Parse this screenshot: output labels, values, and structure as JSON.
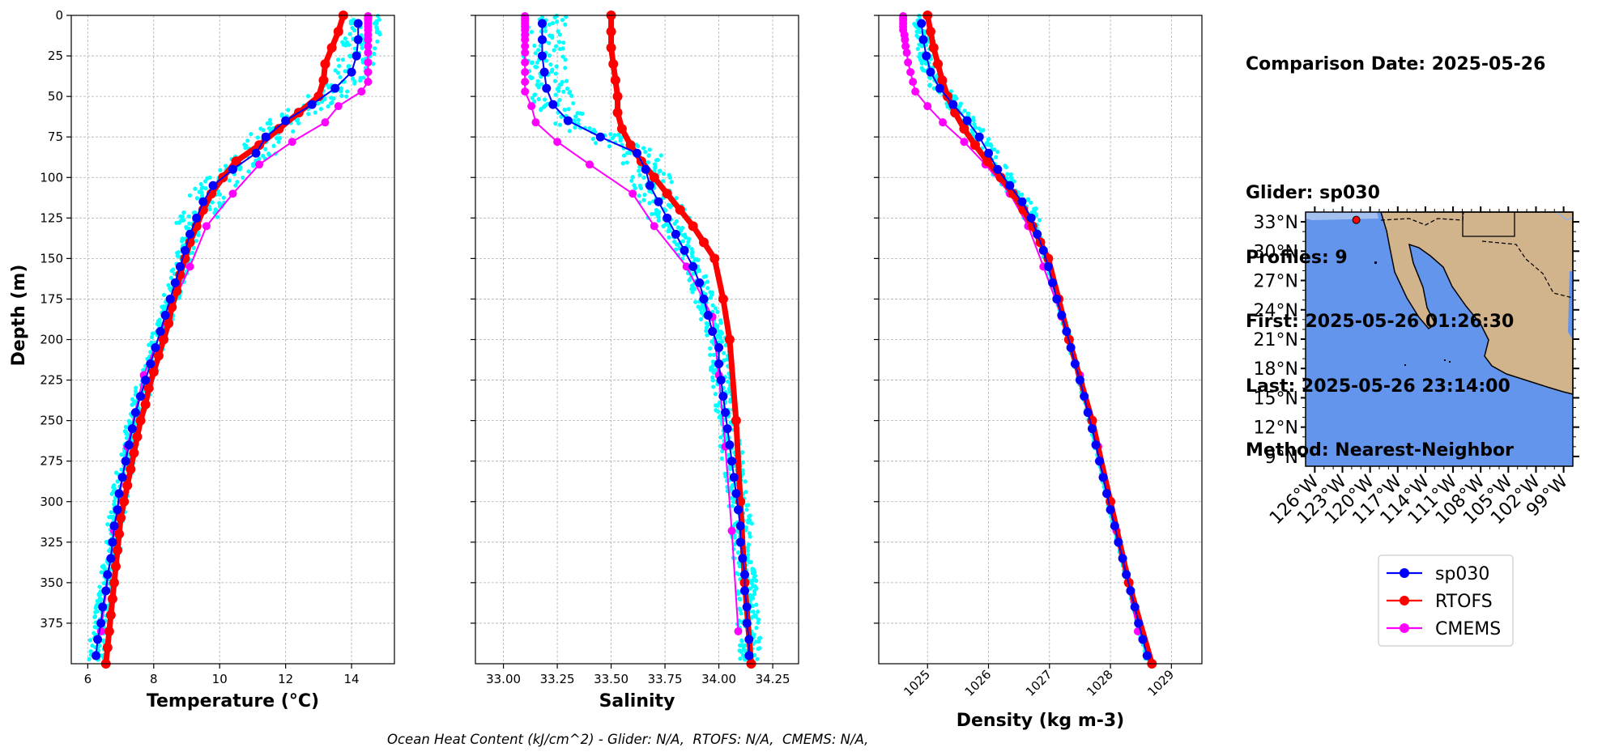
{
  "info": {
    "comparison_date": "Comparison Date: 2025-05-26",
    "glider": "Glider: sp030",
    "profiles": "Profiles: 9",
    "first": "First: 2025-05-26 01:26:30",
    "last": "Last: 2025-05-26 23:14:00",
    "method": "Method: Nearest-Neighbor"
  },
  "footer": "Ocean Heat Content (kJ/cm^2) - Glider: N/A,  RTOFS: N/A,  CMEMS: N/A,",
  "colors": {
    "glider": "#0000ff",
    "rtofs": "#ff0000",
    "cmems": "#ff00ff",
    "raw": "#00ffff",
    "ocean": "#6495ed",
    "land": "#d2b48c",
    "shelf": "#a4c0ee"
  },
  "chart_data": [
    {
      "type": "line",
      "xlabel": "Temperature (°C)",
      "ylabel": "Depth (m)",
      "xlim": [
        5.5,
        15.3
      ],
      "ylim": [
        400,
        0
      ],
      "xticks": [
        6,
        8,
        10,
        12,
        14
      ],
      "yticks": [
        0,
        25,
        50,
        75,
        100,
        125,
        150,
        175,
        200,
        225,
        250,
        275,
        300,
        325,
        350,
        375
      ],
      "grid": true,
      "series": [
        {
          "name": "sp030",
          "depth": [
            5,
            15,
            25,
            35,
            45,
            55,
            65,
            75,
            85,
            95,
            105,
            115,
            125,
            135,
            145,
            155,
            165,
            175,
            185,
            195,
            205,
            215,
            225,
            235,
            245,
            255,
            265,
            275,
            285,
            295,
            305,
            315,
            325,
            335,
            345,
            355,
            365,
            375,
            385,
            395
          ],
          "values": [
            14.2,
            14.2,
            14.15,
            14.0,
            13.5,
            12.8,
            12.0,
            11.4,
            11.1,
            10.4,
            9.8,
            9.5,
            9.3,
            9.1,
            8.95,
            8.8,
            8.65,
            8.5,
            8.35,
            8.2,
            8.05,
            7.9,
            7.75,
            7.6,
            7.45,
            7.35,
            7.25,
            7.15,
            7.05,
            6.95,
            6.9,
            6.8,
            6.75,
            6.7,
            6.6,
            6.55,
            6.45,
            6.4,
            6.3,
            6.25
          ]
        },
        {
          "name": "RTOFS",
          "depth": [
            0,
            10,
            20,
            30,
            40,
            50,
            60,
            70,
            80,
            90,
            100,
            110,
            120,
            130,
            140,
            150,
            160,
            170,
            180,
            190,
            200,
            210,
            220,
            230,
            240,
            250,
            260,
            270,
            280,
            290,
            300,
            310,
            320,
            330,
            340,
            350,
            360,
            370,
            380,
            390,
            400
          ],
          "values": [
            13.75,
            13.6,
            13.4,
            13.2,
            13.15,
            13.0,
            12.4,
            11.8,
            11.2,
            10.5,
            10.1,
            9.75,
            9.5,
            9.3,
            9.1,
            8.95,
            8.8,
            8.7,
            8.55,
            8.45,
            8.3,
            8.15,
            8.0,
            7.85,
            7.75,
            7.6,
            7.5,
            7.4,
            7.3,
            7.2,
            7.1,
            7.0,
            6.95,
            6.9,
            6.85,
            6.8,
            6.75,
            6.7,
            6.65,
            6.6,
            6.55
          ]
        },
        {
          "name": "CMEMS",
          "depth": [
            0.5,
            2,
            3,
            5,
            7,
            9,
            12,
            15,
            19,
            23,
            29,
            35,
            41,
            47,
            56,
            66,
            78,
            92,
            110,
            130,
            155,
            186,
            222,
            266,
            318,
            380
          ],
          "values": [
            14.5,
            14.5,
            14.5,
            14.5,
            14.5,
            14.5,
            14.5,
            14.5,
            14.5,
            14.5,
            14.5,
            14.5,
            14.5,
            14.3,
            13.6,
            13.2,
            12.2,
            11.2,
            10.4,
            9.6,
            9.1,
            8.4,
            7.7,
            7.2,
            6.8,
            6.4
          ]
        },
        {
          "name": "raw profiles",
          "style": "dots",
          "depth_range": [
            0,
            400
          ],
          "spread": [
            0.5,
            1.2
          ]
        }
      ]
    },
    {
      "type": "line",
      "xlabel": "Salinity",
      "xlim": [
        32.87,
        34.37
      ],
      "ylim": [
        400,
        0
      ],
      "xticks": [
        33.0,
        33.25,
        33.5,
        33.75,
        34.0,
        34.25
      ],
      "xticklabels": [
        "33.00",
        "33.25",
        "33.50",
        "33.75",
        "34.00",
        "34.25"
      ],
      "grid": true,
      "series": [
        {
          "name": "sp030",
          "depth": [
            5,
            15,
            25,
            35,
            45,
            55,
            65,
            75,
            85,
            95,
            105,
            115,
            125,
            135,
            145,
            155,
            165,
            175,
            185,
            195,
            205,
            215,
            225,
            235,
            245,
            255,
            265,
            275,
            285,
            295,
            305,
            315,
            325,
            335,
            345,
            355,
            365,
            375,
            385,
            395
          ],
          "values": [
            33.18,
            33.18,
            33.18,
            33.19,
            33.2,
            33.23,
            33.3,
            33.45,
            33.62,
            33.66,
            33.68,
            33.72,
            33.76,
            33.8,
            33.84,
            33.88,
            33.91,
            33.93,
            33.95,
            33.97,
            34.0,
            34.0,
            34.01,
            34.02,
            34.03,
            34.04,
            34.05,
            34.06,
            34.07,
            34.08,
            34.09,
            34.1,
            34.1,
            34.11,
            34.12,
            34.12,
            34.13,
            34.13,
            34.14,
            34.14
          ]
        },
        {
          "name": "RTOFS",
          "depth": [
            0,
            10,
            20,
            30,
            40,
            50,
            60,
            70,
            80,
            90,
            100,
            110,
            120,
            130,
            140,
            150,
            175,
            200,
            250,
            300,
            350,
            400
          ],
          "values": [
            33.5,
            33.5,
            33.5,
            33.51,
            33.52,
            33.53,
            33.53,
            33.55,
            33.59,
            33.64,
            33.7,
            33.76,
            33.82,
            33.88,
            33.93,
            33.98,
            34.02,
            34.05,
            34.08,
            34.1,
            34.12,
            34.15
          ]
        },
        {
          "name": "CMEMS",
          "depth": [
            0.5,
            2,
            3,
            5,
            7,
            9,
            12,
            15,
            19,
            23,
            29,
            35,
            41,
            47,
            56,
            66,
            78,
            92,
            110,
            130,
            155,
            186,
            222,
            266,
            318,
            380
          ],
          "values": [
            33.1,
            33.1,
            33.1,
            33.1,
            33.1,
            33.1,
            33.1,
            33.1,
            33.1,
            33.1,
            33.1,
            33.1,
            33.1,
            33.1,
            33.13,
            33.15,
            33.25,
            33.4,
            33.6,
            33.7,
            33.85,
            33.97,
            34.0,
            34.03,
            34.06,
            34.09
          ]
        },
        {
          "name": "raw profiles",
          "style": "dots",
          "depth_range": [
            0,
            400
          ],
          "spread": [
            0.1,
            0.2
          ]
        }
      ]
    },
    {
      "type": "line",
      "xlabel": "Density (kg m-3)",
      "xlim": [
        1024.2,
        1029.5
      ],
      "ylim": [
        400,
        0
      ],
      "xticks": [
        1025,
        1026,
        1027,
        1028,
        1029
      ],
      "grid": true,
      "series": [
        {
          "name": "sp030",
          "depth": [
            5,
            15,
            25,
            35,
            45,
            55,
            65,
            75,
            85,
            95,
            105,
            115,
            125,
            135,
            145,
            155,
            165,
            175,
            185,
            195,
            205,
            215,
            225,
            235,
            245,
            255,
            265,
            275,
            285,
            295,
            305,
            315,
            325,
            335,
            345,
            355,
            365,
            375,
            385,
            395
          ],
          "values": [
            1024.9,
            1024.93,
            1024.98,
            1025.05,
            1025.2,
            1025.42,
            1025.65,
            1025.85,
            1026.0,
            1026.15,
            1026.35,
            1026.55,
            1026.7,
            1026.8,
            1026.9,
            1026.98,
            1027.05,
            1027.12,
            1027.2,
            1027.28,
            1027.35,
            1027.42,
            1027.5,
            1027.57,
            1027.63,
            1027.7,
            1027.76,
            1027.82,
            1027.88,
            1027.94,
            1028.0,
            1028.07,
            1028.13,
            1028.2,
            1028.26,
            1028.33,
            1028.4,
            1028.46,
            1028.53,
            1028.6
          ]
        },
        {
          "name": "RTOFS",
          "depth": [
            0,
            10,
            20,
            30,
            40,
            50,
            60,
            70,
            80,
            90,
            100,
            110,
            120,
            130,
            140,
            150,
            175,
            200,
            250,
            300,
            350,
            400
          ],
          "values": [
            1025.0,
            1025.05,
            1025.1,
            1025.17,
            1025.24,
            1025.33,
            1025.45,
            1025.6,
            1025.78,
            1025.98,
            1026.2,
            1026.4,
            1026.57,
            1026.72,
            1026.85,
            1026.98,
            1027.15,
            1027.32,
            1027.7,
            1028.0,
            1028.3,
            1028.68
          ]
        },
        {
          "name": "CMEMS",
          "depth": [
            0.5,
            2,
            3,
            5,
            7,
            9,
            12,
            15,
            19,
            23,
            29,
            35,
            41,
            47,
            56,
            66,
            78,
            92,
            110,
            130,
            155,
            186,
            222,
            266,
            318,
            380
          ],
          "values": [
            1024.6,
            1024.6,
            1024.6,
            1024.6,
            1024.6,
            1024.6,
            1024.62,
            1024.63,
            1024.64,
            1024.66,
            1024.68,
            1024.72,
            1024.76,
            1024.8,
            1025.0,
            1025.25,
            1025.6,
            1025.95,
            1026.35,
            1026.65,
            1026.9,
            1027.2,
            1027.5,
            1027.8,
            1028.1,
            1028.45
          ]
        },
        {
          "name": "raw profiles",
          "style": "dots",
          "depth_range": [
            0,
            400
          ],
          "spread": [
            0.06,
            0.3
          ]
        }
      ]
    }
  ],
  "map": {
    "lat_labels": [
      "33°N",
      "30°N",
      "27°N",
      "24°N",
      "21°N",
      "18°N",
      "15°N",
      "12°N",
      "9°N"
    ],
    "lat_values": [
      33,
      30,
      27,
      24,
      21,
      18,
      15,
      12,
      9
    ],
    "lon_labels": [
      "126°W",
      "123°W",
      "120°W",
      "117°W",
      "114°W",
      "111°W",
      "108°W",
      "105°W",
      "102°W",
      "99°W"
    ],
    "lon_values": [
      -126,
      -123,
      -120,
      -117,
      -114,
      -111,
      -108,
      -105,
      -102,
      -99
    ],
    "lat_range": [
      8,
      34
    ],
    "lon_range": [
      -127,
      -98
    ],
    "glider_position": {
      "lat": 33.2,
      "lon": -121.5
    }
  },
  "legend": [
    {
      "label": "sp030",
      "color": "#0000ff"
    },
    {
      "label": "RTOFS",
      "color": "#ff0000"
    },
    {
      "label": "CMEMS",
      "color": "#ff00ff"
    }
  ]
}
